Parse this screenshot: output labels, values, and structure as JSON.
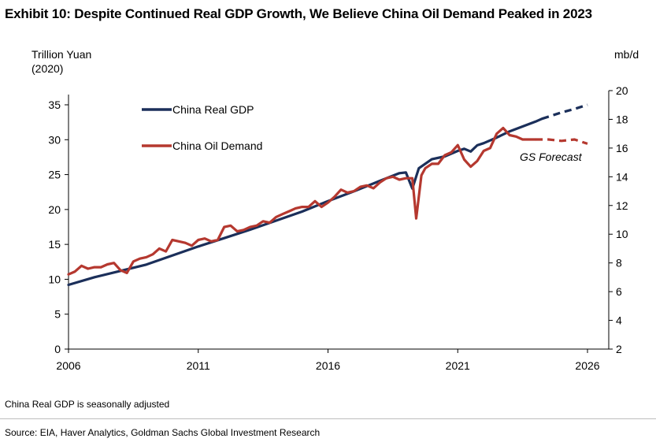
{
  "title": "Exhibit 10: Despite Continued Real GDP Growth, We Believe China Oil Demand Peaked in 2023",
  "footnote": "China Real GDP is seasonally adjusted",
  "source": "Source: EIA, Haver Analytics, Goldman Sachs Global Investment Research",
  "colors": {
    "gdp": "#1b2f5a",
    "oil": "#b5382f",
    "axis": "#000000"
  },
  "chart_data": {
    "type": "line",
    "left_axis": {
      "label_line1": "Trillion Yuan",
      "label_line2": "(2020)",
      "range": [
        0,
        35
      ],
      "ticks": [
        0,
        5,
        10,
        15,
        20,
        25,
        30,
        35
      ]
    },
    "right_axis": {
      "label": "mb/d",
      "range": [
        2,
        20
      ],
      "ticks": [
        2,
        4,
        6,
        8,
        10,
        12,
        14,
        16,
        18,
        20
      ]
    },
    "x_axis": {
      "range": [
        2006,
        2026
      ],
      "ticks": [
        2006,
        2011,
        2016,
        2021,
        2026
      ]
    },
    "legend": {
      "position": "top-left",
      "gdp_label": "China Real GDP",
      "oil_label": "China Oil Demand"
    },
    "annotation": "GS Forecast",
    "series": [
      {
        "name": "China Real GDP",
        "axis": "left",
        "actual": [
          [
            2006.0,
            9.2
          ],
          [
            2007.0,
            10.3
          ],
          [
            2008.0,
            11.2
          ],
          [
            2009.0,
            12.1
          ],
          [
            2010.0,
            13.4
          ],
          [
            2011.0,
            14.7
          ],
          [
            2012.0,
            15.9
          ],
          [
            2013.0,
            17.1
          ],
          [
            2014.0,
            18.4
          ],
          [
            2015.0,
            19.7
          ],
          [
            2016.0,
            21.2
          ],
          [
            2017.0,
            22.6
          ],
          [
            2018.0,
            24.1
          ],
          [
            2018.75,
            25.2
          ],
          [
            2019.0,
            25.3
          ],
          [
            2019.25,
            23.0
          ],
          [
            2019.5,
            25.9
          ],
          [
            2020.0,
            27.2
          ],
          [
            2020.5,
            27.6
          ],
          [
            2021.0,
            28.4
          ],
          [
            2021.25,
            28.7
          ],
          [
            2021.5,
            28.3
          ],
          [
            2021.75,
            29.2
          ],
          [
            2022.0,
            29.5
          ],
          [
            2022.5,
            30.3
          ],
          [
            2023.0,
            31.2
          ],
          [
            2023.5,
            31.9
          ],
          [
            2024.0,
            32.6
          ],
          [
            2024.25,
            33.0
          ]
        ],
        "forecast": [
          [
            2024.25,
            33.0
          ],
          [
            2025.0,
            33.9
          ],
          [
            2025.5,
            34.4
          ],
          [
            2026.0,
            35.0
          ]
        ]
      },
      {
        "name": "China Oil Demand",
        "axis": "right",
        "actual": [
          [
            2006.0,
            7.2
          ],
          [
            2006.25,
            7.4
          ],
          [
            2006.5,
            7.8
          ],
          [
            2006.75,
            7.6
          ],
          [
            2007.0,
            7.7
          ],
          [
            2007.25,
            7.7
          ],
          [
            2007.5,
            7.9
          ],
          [
            2007.75,
            8.0
          ],
          [
            2008.0,
            7.5
          ],
          [
            2008.25,
            7.3
          ],
          [
            2008.5,
            8.1
          ],
          [
            2008.75,
            8.3
          ],
          [
            2009.0,
            8.4
          ],
          [
            2009.25,
            8.6
          ],
          [
            2009.5,
            9.0
          ],
          [
            2009.75,
            8.8
          ],
          [
            2010.0,
            9.6
          ],
          [
            2010.25,
            9.5
          ],
          [
            2010.5,
            9.4
          ],
          [
            2010.75,
            9.2
          ],
          [
            2011.0,
            9.6
          ],
          [
            2011.25,
            9.7
          ],
          [
            2011.5,
            9.5
          ],
          [
            2011.75,
            9.6
          ],
          [
            2012.0,
            10.5
          ],
          [
            2012.25,
            10.6
          ],
          [
            2012.5,
            10.2
          ],
          [
            2012.75,
            10.3
          ],
          [
            2013.0,
            10.5
          ],
          [
            2013.25,
            10.6
          ],
          [
            2013.5,
            10.9
          ],
          [
            2013.75,
            10.8
          ],
          [
            2014.0,
            11.2
          ],
          [
            2014.25,
            11.4
          ],
          [
            2014.5,
            11.6
          ],
          [
            2014.75,
            11.8
          ],
          [
            2015.0,
            11.9
          ],
          [
            2015.25,
            11.9
          ],
          [
            2015.5,
            12.3
          ],
          [
            2015.75,
            11.9
          ],
          [
            2016.0,
            12.2
          ],
          [
            2016.25,
            12.6
          ],
          [
            2016.5,
            13.1
          ],
          [
            2016.75,
            12.9
          ],
          [
            2017.0,
            13.0
          ],
          [
            2017.25,
            13.3
          ],
          [
            2017.5,
            13.4
          ],
          [
            2017.75,
            13.2
          ],
          [
            2018.0,
            13.6
          ],
          [
            2018.25,
            13.9
          ],
          [
            2018.5,
            14.0
          ],
          [
            2018.75,
            13.8
          ],
          [
            2019.0,
            13.9
          ],
          [
            2019.25,
            13.9
          ],
          [
            2019.4,
            11.1
          ],
          [
            2019.6,
            14.1
          ],
          [
            2019.75,
            14.6
          ],
          [
            2020.0,
            14.9
          ],
          [
            2020.25,
            14.9
          ],
          [
            2020.5,
            15.5
          ],
          [
            2020.75,
            15.7
          ],
          [
            2021.0,
            16.2
          ],
          [
            2021.25,
            15.2
          ],
          [
            2021.5,
            14.7
          ],
          [
            2021.75,
            15.1
          ],
          [
            2022.0,
            15.8
          ],
          [
            2022.25,
            16.0
          ],
          [
            2022.5,
            17.0
          ],
          [
            2022.75,
            17.4
          ],
          [
            2023.0,
            16.9
          ],
          [
            2023.25,
            16.8
          ],
          [
            2023.5,
            16.6
          ],
          [
            2023.75,
            16.6
          ],
          [
            2024.0,
            16.6
          ]
        ],
        "forecast": [
          [
            2024.0,
            16.6
          ],
          [
            2024.5,
            16.6
          ],
          [
            2025.0,
            16.5
          ],
          [
            2025.5,
            16.6
          ],
          [
            2026.0,
            16.3
          ]
        ]
      }
    ]
  }
}
